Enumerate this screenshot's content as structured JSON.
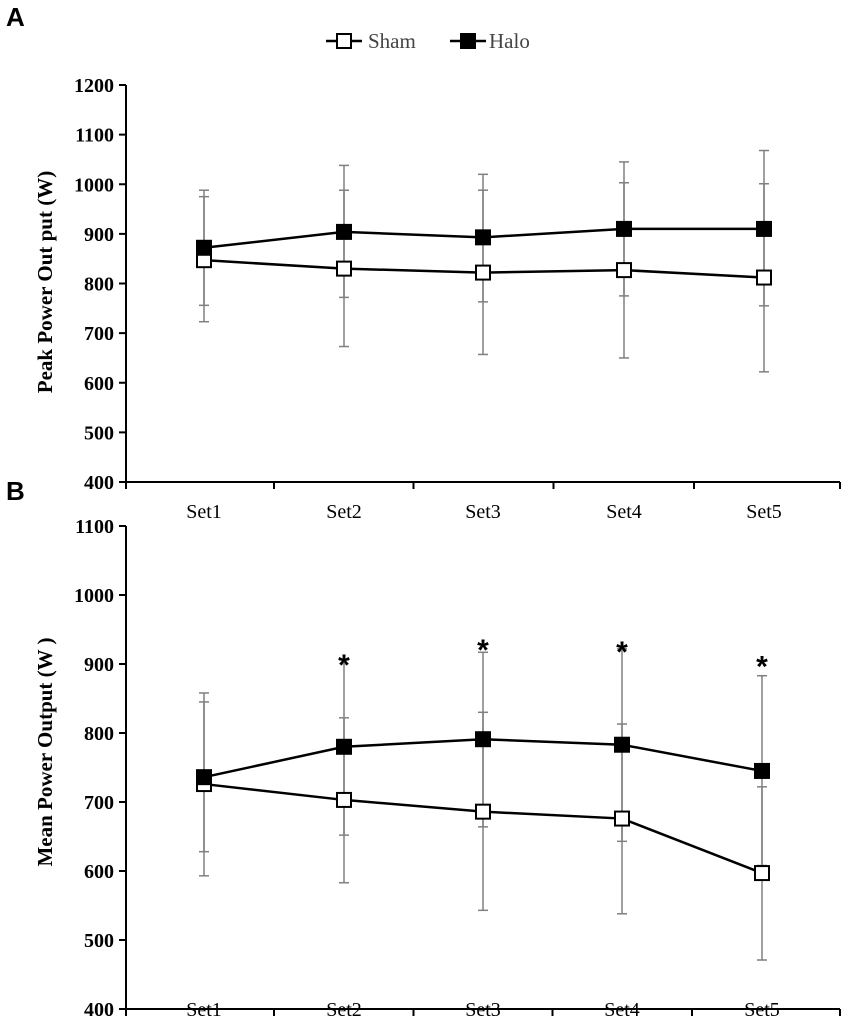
{
  "legend": [
    {
      "name": "Sham",
      "marker": "open-square"
    },
    {
      "name": "Halo",
      "marker": "filled-square"
    }
  ],
  "colors": {
    "line": "#000000",
    "errorbar": "#808080",
    "open_fill": "#ffffff",
    "filled_fill": "#000000"
  },
  "chart_data": [
    {
      "panel": "A",
      "type": "line",
      "categories": [
        "Set1",
        "Set2",
        "Set3",
        "Set4",
        "Set5"
      ],
      "ylabel": "Peak Power Out put (W)",
      "xlabel": "",
      "ylim": [
        400,
        1200
      ],
      "yticks": [
        400,
        500,
        600,
        700,
        800,
        900,
        1000,
        1100,
        1200
      ],
      "series": [
        {
          "name": "Sham",
          "marker": "open-square",
          "values": [
            847,
            830,
            822,
            827,
            812
          ],
          "error_lower": [
            723,
            673,
            657,
            650,
            622
          ],
          "error_upper": [
            975,
            988,
            988,
            1003,
            1001
          ]
        },
        {
          "name": "Halo",
          "marker": "filled-square",
          "values": [
            872,
            904,
            893,
            910,
            910
          ],
          "error_lower": [
            756,
            772,
            763,
            775,
            755
          ],
          "error_upper": [
            988,
            1038,
            1020,
            1045,
            1068
          ]
        }
      ],
      "annotations": []
    },
    {
      "panel": "B",
      "type": "line",
      "categories": [
        "Set1",
        "Set2",
        "Set3",
        "Set4",
        "Set5"
      ],
      "ylabel": "Mean Power Output (W )",
      "xlabel": "",
      "ylim": [
        400,
        1100
      ],
      "yticks": [
        400,
        500,
        600,
        700,
        800,
        900,
        1000,
        1100
      ],
      "series": [
        {
          "name": "Sham",
          "marker": "open-square",
          "values": [
            726,
            703,
            686,
            676,
            597
          ],
          "error_lower": [
            593,
            583,
            543,
            538,
            471
          ],
          "error_upper": [
            858,
            822,
            830,
            813,
            722
          ]
        },
        {
          "name": "Halo",
          "marker": "filled-square",
          "values": [
            736,
            780,
            791,
            783,
            745
          ],
          "error_lower": [
            628,
            652,
            664,
            643,
            608
          ],
          "error_upper": [
            845,
            906,
            917,
            922,
            883
          ]
        }
      ],
      "annotations": [
        {
          "text": "*",
          "category": "Set2",
          "value": 913
        },
        {
          "text": "*",
          "category": "Set3",
          "value": 935
        },
        {
          "text": "*",
          "category": "Set4",
          "value": 932
        },
        {
          "text": "*",
          "category": "Set5",
          "value": 911
        }
      ]
    }
  ]
}
